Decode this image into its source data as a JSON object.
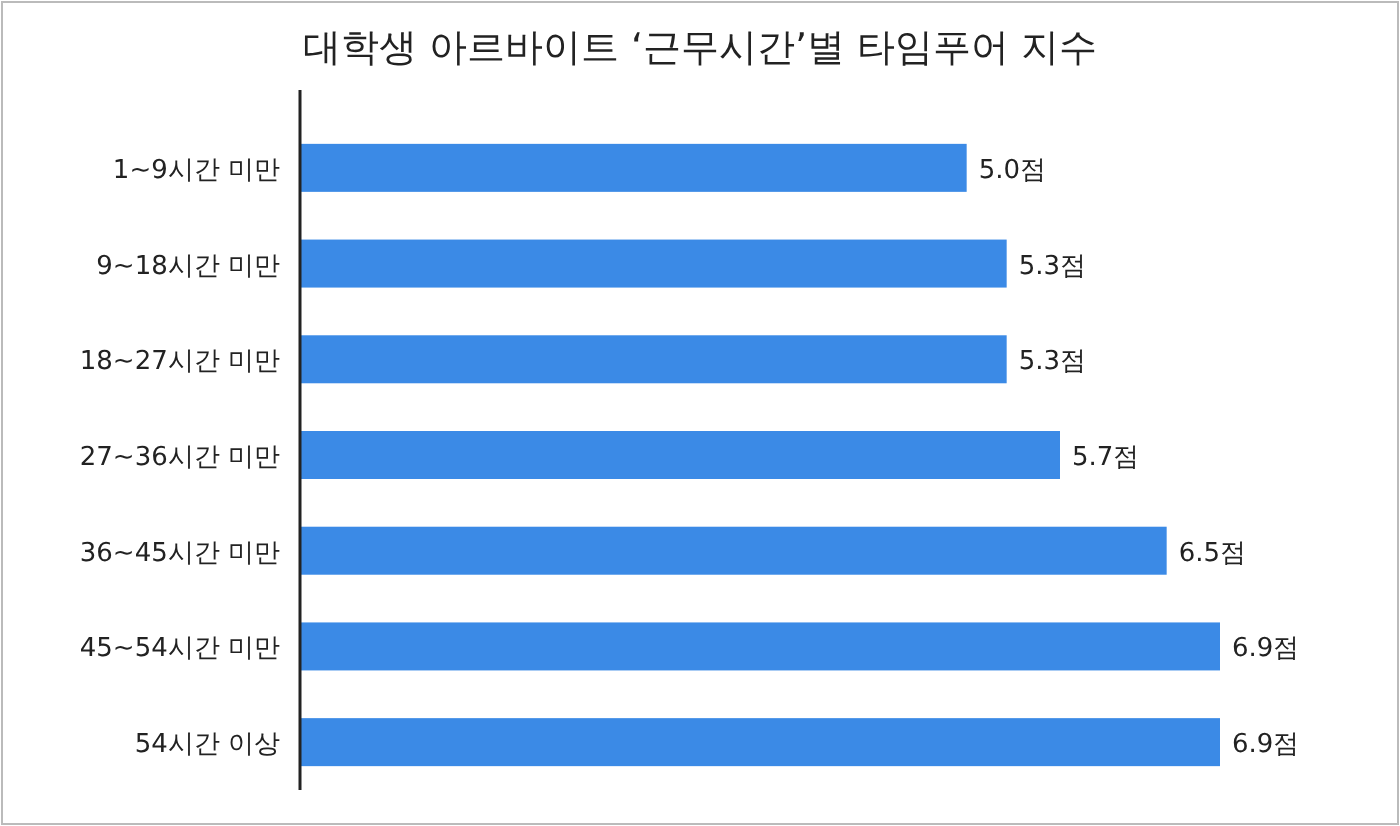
{
  "chart_data": {
    "type": "bar",
    "orientation": "horizontal",
    "title": "대학생 아르바이트 ‘근무시간’별 타임푸어 지수",
    "categories": [
      "1~9시간 미만",
      "9~18시간 미만",
      "18~27시간 미만",
      "27~36시간 미만",
      "36~45시간 미만",
      "45~54시간 미만",
      "54시간 이상"
    ],
    "values": [
      5.0,
      5.3,
      5.3,
      5.7,
      6.5,
      6.9,
      6.9
    ],
    "value_labels": [
      "5.0점",
      "5.3점",
      "5.3점",
      "5.7점",
      "6.5점",
      "6.9점",
      "6.9점"
    ],
    "color": "#3b8ae6"
  }
}
